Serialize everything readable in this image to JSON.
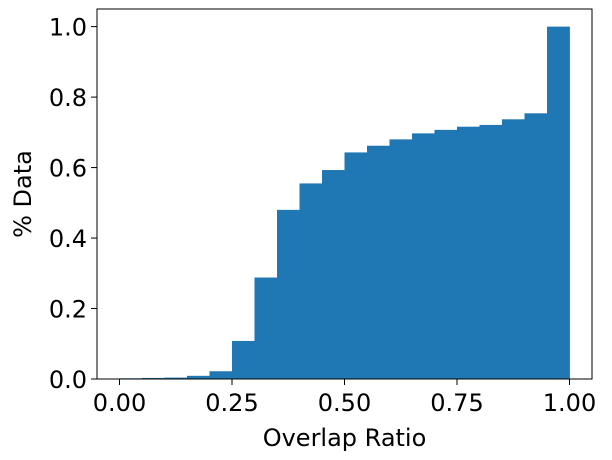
{
  "chart_data": {
    "type": "bar",
    "title": "",
    "xlabel": "Overlap Ratio",
    "ylabel": "% Data",
    "xlim": [
      -0.05,
      1.05
    ],
    "ylim": [
      0,
      1.05
    ],
    "bin_width": 0.05,
    "bins": [
      {
        "x0": 0.0,
        "x1": 0.05,
        "value": 0.002
      },
      {
        "x0": 0.05,
        "x1": 0.1,
        "value": 0.003
      },
      {
        "x0": 0.1,
        "x1": 0.15,
        "value": 0.004
      },
      {
        "x0": 0.15,
        "x1": 0.2,
        "value": 0.009
      },
      {
        "x0": 0.2,
        "x1": 0.25,
        "value": 0.022
      },
      {
        "x0": 0.25,
        "x1": 0.3,
        "value": 0.108
      },
      {
        "x0": 0.3,
        "x1": 0.35,
        "value": 0.288
      },
      {
        "x0": 0.35,
        "x1": 0.4,
        "value": 0.48
      },
      {
        "x0": 0.4,
        "x1": 0.45,
        "value": 0.555
      },
      {
        "x0": 0.45,
        "x1": 0.5,
        "value": 0.593
      },
      {
        "x0": 0.5,
        "x1": 0.55,
        "value": 0.643
      },
      {
        "x0": 0.55,
        "x1": 0.6,
        "value": 0.662
      },
      {
        "x0": 0.6,
        "x1": 0.65,
        "value": 0.68
      },
      {
        "x0": 0.65,
        "x1": 0.7,
        "value": 0.697
      },
      {
        "x0": 0.7,
        "x1": 0.75,
        "value": 0.707
      },
      {
        "x0": 0.75,
        "x1": 0.8,
        "value": 0.716
      },
      {
        "x0": 0.8,
        "x1": 0.85,
        "value": 0.721
      },
      {
        "x0": 0.85,
        "x1": 0.9,
        "value": 0.737
      },
      {
        "x0": 0.9,
        "x1": 0.95,
        "value": 0.754
      },
      {
        "x0": 0.95,
        "x1": 1.0,
        "value": 1.0
      }
    ],
    "x_ticks": [
      {
        "value": 0.0,
        "label": "0.00"
      },
      {
        "value": 0.25,
        "label": "0.25"
      },
      {
        "value": 0.5,
        "label": "0.50"
      },
      {
        "value": 0.75,
        "label": "0.75"
      },
      {
        "value": 1.0,
        "label": "1.00"
      }
    ],
    "y_ticks": [
      {
        "value": 0.0,
        "label": "0.0"
      },
      {
        "value": 0.2,
        "label": "0.2"
      },
      {
        "value": 0.4,
        "label": "0.4"
      },
      {
        "value": 0.6,
        "label": "0.6"
      },
      {
        "value": 0.8,
        "label": "0.8"
      },
      {
        "value": 1.0,
        "label": "1.0"
      }
    ],
    "grid": false,
    "legend": "none",
    "colors": {
      "bar": "#1f77b4",
      "axis": "#000000",
      "background": "#ffffff"
    }
  }
}
